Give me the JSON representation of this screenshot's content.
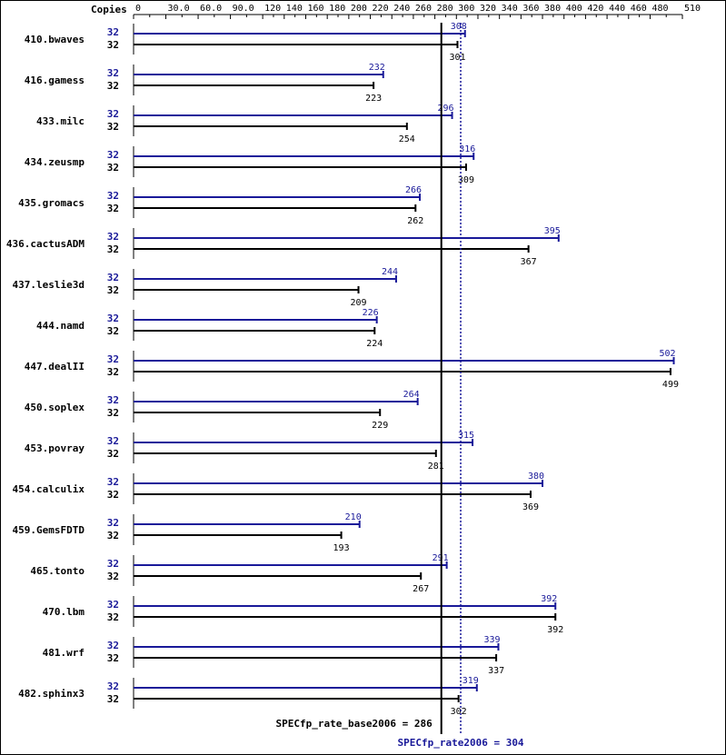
{
  "chart_data": {
    "type": "bar",
    "orientation": "horizontal",
    "copies_header": "Copies",
    "x_ticks": [
      "0",
      "30.0",
      "60.0",
      "90.0",
      "120",
      "140",
      "160",
      "180",
      "200",
      "220",
      "240",
      "260",
      "280",
      "300",
      "320",
      "340",
      "360",
      "380",
      "400",
      "420",
      "440",
      "460",
      "480",
      "510"
    ],
    "x_tick_values": [
      0,
      30,
      60,
      90,
      120,
      140,
      160,
      180,
      200,
      220,
      240,
      260,
      280,
      300,
      320,
      340,
      360,
      380,
      400,
      420,
      440,
      460,
      480,
      510
    ],
    "xlim": [
      0,
      510
    ],
    "categories": [
      "410.bwaves",
      "416.gamess",
      "433.milc",
      "434.zeusmp",
      "435.gromacs",
      "436.cactusADM",
      "437.leslie3d",
      "444.namd",
      "447.dealII",
      "450.soplex",
      "453.povray",
      "454.calculix",
      "459.GemsFDTD",
      "465.tonto",
      "470.lbm",
      "481.wrf",
      "482.sphinx3"
    ],
    "series": [
      {
        "key": "peak",
        "color": "#191999",
        "copies": [
          "32",
          "32",
          "32",
          "32",
          "32",
          "32",
          "32",
          "32",
          "32",
          "32",
          "32",
          "32",
          "32",
          "32",
          "32",
          "32",
          "32"
        ],
        "values": [
          308,
          232,
          296,
          316,
          266,
          395,
          244,
          226,
          502,
          264,
          315,
          380,
          210,
          291,
          392,
          339,
          319
        ],
        "labels": [
          "308",
          "232",
          "296",
          "316",
          "266",
          "395",
          "244",
          "226",
          "502",
          "264",
          "315",
          "380",
          "210",
          "291",
          "392",
          "339",
          "319"
        ]
      },
      {
        "key": "base",
        "color": "#000000",
        "copies": [
          "32",
          "32",
          "32",
          "32",
          "32",
          "32",
          "32",
          "32",
          "32",
          "32",
          "32",
          "32",
          "32",
          "32",
          "32",
          "32",
          "32"
        ],
        "values": [
          301,
          223,
          254,
          309,
          262,
          367,
          209,
          224,
          499,
          229,
          281,
          369,
          193,
          267,
          392,
          337,
          302
        ],
        "labels": [
          "301",
          "223",
          "254",
          "309",
          "262",
          "367",
          "209",
          "224",
          "499",
          "229",
          "281",
          "369",
          "193",
          "267",
          "392",
          "337",
          "302"
        ]
      }
    ],
    "reference_lines": [
      {
        "key": "base",
        "value": 286,
        "label": "SPECfp_rate_base2006 = 286",
        "style": "solid",
        "color": "#000000"
      },
      {
        "key": "peak",
        "value": 304,
        "label": "SPECfp_rate2006 = 304",
        "style": "dotted",
        "color": "#191999"
      }
    ],
    "grid": false
  }
}
